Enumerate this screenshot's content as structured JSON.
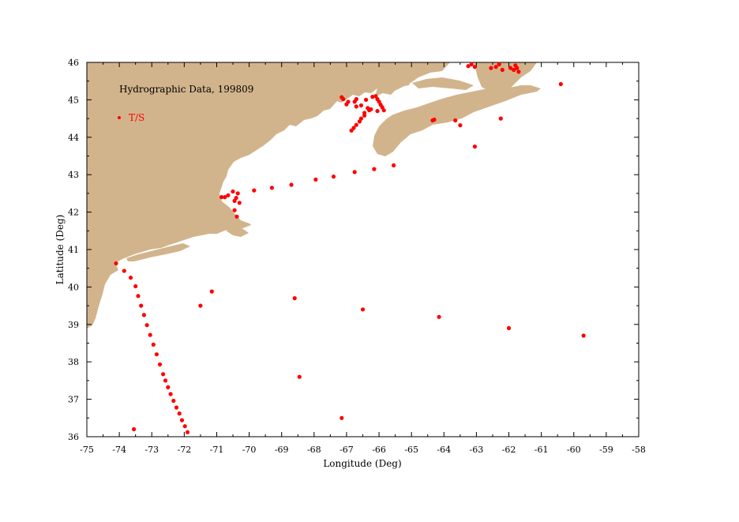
{
  "title": "Hydrographic Data, 199809",
  "legend": {
    "label": "T/S",
    "color": "#ff0000"
  },
  "colors": {
    "land": "#d2b48c",
    "station": "#ff0000",
    "axis": "#000000"
  },
  "chart_data": {
    "type": "scatter",
    "xlabel": "Longitude (Deg)",
    "ylabel": "Latitude (Deg)",
    "xlim": [
      -75,
      -58
    ],
    "ylim": [
      36,
      46
    ],
    "xticks": [
      -75,
      -74,
      -73,
      -72,
      -71,
      -70,
      -69,
      -68,
      -67,
      -66,
      -65,
      -64,
      -63,
      -62,
      -61,
      -60,
      -59,
      -58
    ],
    "yticks": [
      36,
      37,
      38,
      39,
      40,
      41,
      42,
      43,
      44,
      45,
      46
    ],
    "series": [
      {
        "name": "T/S",
        "points": [
          [
            -74.1,
            40.63
          ],
          [
            -73.85,
            40.43
          ],
          [
            -73.65,
            40.25
          ],
          [
            -73.5,
            40.02
          ],
          [
            -73.42,
            39.76
          ],
          [
            -73.33,
            39.5
          ],
          [
            -73.24,
            39.25
          ],
          [
            -73.15,
            38.98
          ],
          [
            -73.05,
            38.72
          ],
          [
            -72.95,
            38.46
          ],
          [
            -72.85,
            38.2
          ],
          [
            -72.75,
            37.93
          ],
          [
            -72.65,
            37.67
          ],
          [
            -72.58,
            37.5
          ],
          [
            -72.5,
            37.32
          ],
          [
            -72.42,
            37.14
          ],
          [
            -72.33,
            36.96
          ],
          [
            -72.24,
            36.78
          ],
          [
            -72.15,
            36.62
          ],
          [
            -72.07,
            36.44
          ],
          [
            -71.98,
            36.28
          ],
          [
            -71.9,
            36.12
          ],
          [
            -73.55,
            36.2
          ],
          [
            -71.5,
            39.5
          ],
          [
            -71.15,
            39.88
          ],
          [
            -70.85,
            42.4
          ],
          [
            -70.75,
            42.4
          ],
          [
            -70.65,
            42.45
          ],
          [
            -70.5,
            42.55
          ],
          [
            -70.35,
            42.5
          ],
          [
            -70.45,
            42.3
          ],
          [
            -70.3,
            42.25
          ],
          [
            -70.4,
            42.38
          ],
          [
            -70.45,
            42.05
          ],
          [
            -70.38,
            41.88
          ],
          [
            -69.85,
            42.58
          ],
          [
            -69.3,
            42.65
          ],
          [
            -68.7,
            42.73
          ],
          [
            -67.95,
            42.87
          ],
          [
            -67.4,
            42.95
          ],
          [
            -66.75,
            43.07
          ],
          [
            -66.15,
            43.15
          ],
          [
            -65.55,
            43.25
          ],
          [
            -68.6,
            39.7
          ],
          [
            -68.45,
            37.6
          ],
          [
            -67.15,
            36.5
          ],
          [
            -66.5,
            39.4
          ],
          [
            -64.15,
            39.2
          ],
          [
            -62.0,
            38.9
          ],
          [
            -59.7,
            38.7
          ],
          [
            -64.35,
            44.45
          ],
          [
            -64.3,
            44.47
          ],
          [
            -63.65,
            44.45
          ],
          [
            -63.5,
            44.32
          ],
          [
            -63.05,
            43.75
          ],
          [
            -62.25,
            44.5
          ],
          [
            -60.4,
            45.42
          ],
          [
            -63.25,
            45.9
          ],
          [
            -63.15,
            45.95
          ],
          [
            -63.05,
            45.88
          ],
          [
            -62.55,
            45.85
          ],
          [
            -62.4,
            45.88
          ],
          [
            -62.3,
            45.95
          ],
          [
            -62.2,
            45.8
          ],
          [
            -61.95,
            45.85
          ],
          [
            -61.85,
            45.8
          ],
          [
            -61.75,
            45.85
          ],
          [
            -61.7,
            45.75
          ],
          [
            -61.8,
            45.92
          ],
          [
            -67.15,
            45.07
          ],
          [
            -67.1,
            45.02
          ],
          [
            -66.95,
            44.95
          ],
          [
            -67.0,
            44.88
          ],
          [
            -66.75,
            44.95
          ],
          [
            -66.7,
            45.02
          ],
          [
            -66.7,
            44.82
          ],
          [
            -66.55,
            44.85
          ],
          [
            -66.4,
            45.0
          ],
          [
            -66.35,
            44.78
          ],
          [
            -66.25,
            44.75
          ],
          [
            -66.2,
            45.08
          ],
          [
            -66.1,
            45.1
          ],
          [
            -66.05,
            45.02
          ],
          [
            -66.0,
            44.95
          ],
          [
            -65.95,
            44.87
          ],
          [
            -65.9,
            44.8
          ],
          [
            -65.85,
            44.72
          ],
          [
            -66.05,
            44.7
          ],
          [
            -66.3,
            44.72
          ],
          [
            -66.45,
            44.65
          ],
          [
            -66.55,
            44.5
          ],
          [
            -66.6,
            44.42
          ],
          [
            -66.7,
            44.33
          ],
          [
            -66.78,
            44.25
          ],
          [
            -66.85,
            44.18
          ],
          [
            -66.45,
            44.58
          ]
        ]
      }
    ]
  }
}
